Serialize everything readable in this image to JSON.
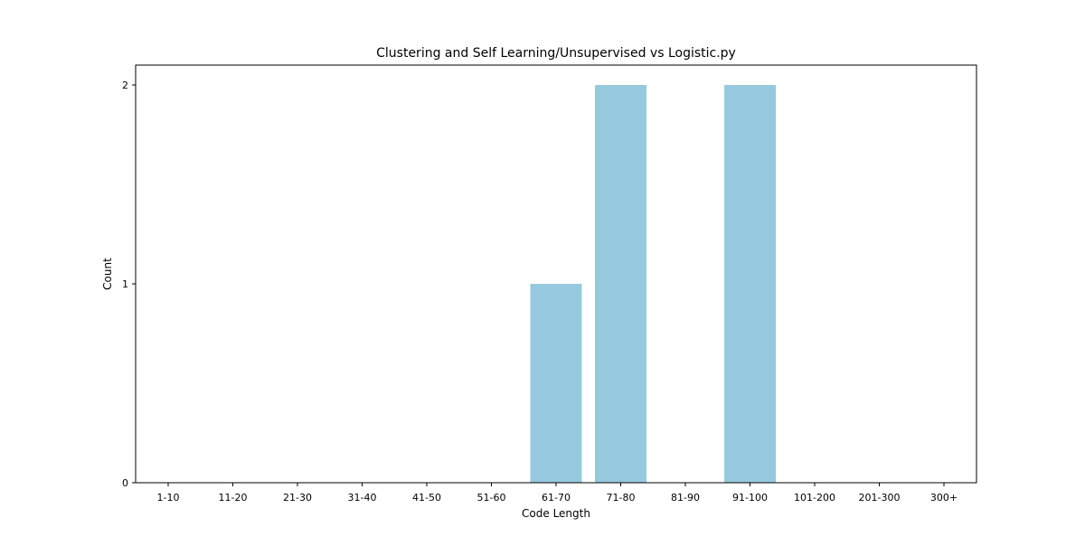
{
  "chart_data": {
    "type": "bar",
    "title": "Clustering and Self Learning/Unsupervised vs Logistic.py",
    "xlabel": "Code Length",
    "ylabel": "Count",
    "categories": [
      "1-10",
      "11-20",
      "21-30",
      "31-40",
      "41-50",
      "51-60",
      "61-70",
      "71-80",
      "81-90",
      "91-100",
      "101-200",
      "201-300",
      "300+"
    ],
    "values": [
      0,
      0,
      0,
      0,
      0,
      0,
      1,
      2,
      0,
      2,
      0,
      0,
      0
    ],
    "yticks": [
      0,
      1,
      2
    ],
    "ylim": [
      0,
      2.1
    ],
    "grid": false,
    "bar_color": "#96c9dd",
    "axis_color": "#000000"
  }
}
